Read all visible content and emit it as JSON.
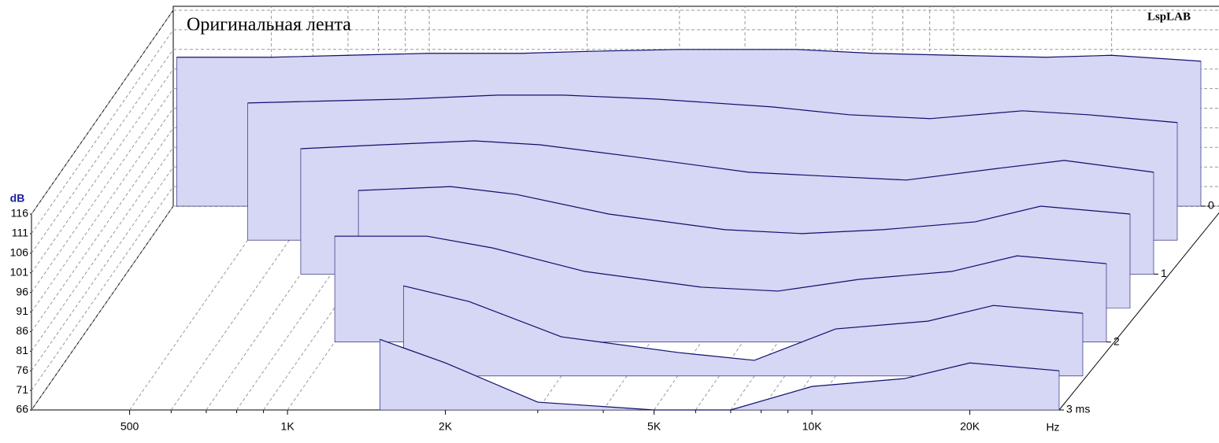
{
  "chart_data": {
    "type": "waterfall",
    "title": "Оригинальная лента",
    "brand": "LspLAB",
    "y_label": "dB",
    "x_label": "Hz",
    "log_x": true,
    "grid": true,
    "fill_color": "#d6d6f5",
    "line_color": "#10106e",
    "xlim": [
      325,
      29600
    ],
    "xticks": [
      {
        "value": 500,
        "label": "500"
      },
      {
        "value": 1000,
        "label": "1K"
      },
      {
        "value": 2000,
        "label": "2K"
      },
      {
        "value": 5000,
        "label": "5K"
      },
      {
        "value": 10000,
        "label": "10K"
      },
      {
        "value": 20000,
        "label": "20K"
      }
    ],
    "xminor": [
      600,
      700,
      800,
      900,
      3000,
      4000,
      6000,
      7000,
      8000,
      9000
    ],
    "ylim": [
      66,
      116
    ],
    "yticks": [
      66,
      71,
      76,
      81,
      86,
      91,
      96,
      101,
      106,
      111,
      116
    ],
    "zlim": [
      0,
      3
    ],
    "zticks": [
      0,
      1,
      2,
      {
        "value": 3,
        "label": "3 ms"
      }
    ],
    "x": [
      330,
      500,
      700,
      1000,
      1500,
      2000,
      3000,
      5000,
      7000,
      10000,
      15000,
      20000,
      29600
    ],
    "series": [
      {
        "t": 0,
        "values": [
          104,
          104,
          104.5,
          105,
          105,
          105.5,
          106,
          106,
          105,
          104.5,
          104,
          104.5,
          103
        ]
      },
      {
        "t": 0.5,
        "values": [
          null,
          101,
          101.5,
          102,
          103,
          103,
          102,
          100,
          98,
          97,
          99,
          98,
          96
        ]
      },
      {
        "t": 1,
        "values": [
          null,
          null,
          98,
          99,
          100,
          99,
          96,
          92,
          91,
          90,
          93,
          95,
          92
        ]
      },
      {
        "t": 1.5,
        "values": [
          null,
          null,
          null,
          96,
          97,
          95,
          90,
          86,
          85,
          86,
          88,
          92,
          90
        ]
      },
      {
        "t": 2,
        "values": [
          null,
          null,
          null,
          93,
          93,
          90,
          84,
          80,
          79,
          82,
          84,
          88,
          86
        ]
      },
      {
        "t": 2.5,
        "values": [
          null,
          null,
          null,
          null,
          89,
          85,
          76,
          72,
          70,
          78,
          80,
          84,
          82
        ]
      },
      {
        "t": 3,
        "values": [
          null,
          null,
          null,
          null,
          84,
          78,
          68,
          66,
          66,
          72,
          74,
          78,
          76
        ]
      }
    ]
  }
}
